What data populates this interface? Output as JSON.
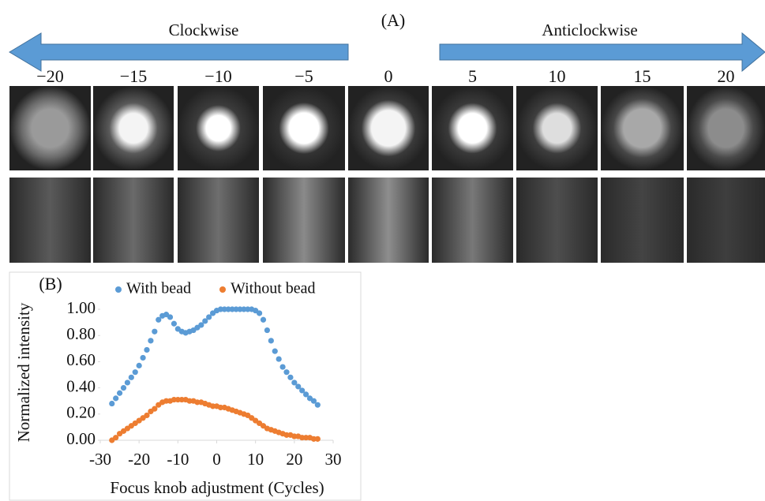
{
  "panel_a": {
    "label": "(A)",
    "left_arrow": "Clockwise",
    "right_arrow": "Anticlockwise",
    "positions": [
      "−20",
      "−15",
      "−10",
      "−5",
      "0",
      "5",
      "10",
      "15",
      "20"
    ]
  },
  "chart_data": {
    "type": "scatter",
    "title": "(B)",
    "x_label": "Focus knob adjustment (Cycles)",
    "y_label": "Normalized intensity",
    "x": [
      -27,
      -26,
      -25,
      -24,
      -23,
      -22,
      -21,
      -20,
      -19,
      -18,
      -17,
      -16,
      -15,
      -14,
      -13,
      -12,
      -11,
      -10,
      -9,
      -8,
      -7,
      -6,
      -5,
      -4,
      -3,
      -2,
      -1,
      0,
      1,
      2,
      3,
      4,
      5,
      6,
      7,
      8,
      9,
      10,
      11,
      12,
      13,
      14,
      15,
      16,
      17,
      18,
      19,
      20,
      21,
      22,
      23,
      24,
      25,
      26
    ],
    "series": [
      {
        "name": "With bead",
        "color": "#5b9bd5",
        "values": [
          0.28,
          0.32,
          0.36,
          0.4,
          0.44,
          0.48,
          0.52,
          0.57,
          0.63,
          0.69,
          0.76,
          0.83,
          0.92,
          0.95,
          0.96,
          0.94,
          0.89,
          0.85,
          0.83,
          0.82,
          0.83,
          0.84,
          0.86,
          0.88,
          0.91,
          0.94,
          0.97,
          0.99,
          1.0,
          1.0,
          1.0,
          1.0,
          1.0,
          1.0,
          1.0,
          1.0,
          1.0,
          0.99,
          0.97,
          0.92,
          0.84,
          0.76,
          0.68,
          0.62,
          0.56,
          0.52,
          0.48,
          0.44,
          0.41,
          0.38,
          0.35,
          0.32,
          0.3,
          0.27
        ]
      },
      {
        "name": "Without bead",
        "color": "#ed7d31",
        "values": [
          0.0,
          0.02,
          0.05,
          0.07,
          0.09,
          0.11,
          0.13,
          0.15,
          0.17,
          0.19,
          0.22,
          0.24,
          0.27,
          0.29,
          0.3,
          0.3,
          0.31,
          0.31,
          0.31,
          0.31,
          0.3,
          0.3,
          0.29,
          0.29,
          0.28,
          0.27,
          0.26,
          0.26,
          0.25,
          0.25,
          0.24,
          0.23,
          0.22,
          0.21,
          0.2,
          0.19,
          0.17,
          0.15,
          0.13,
          0.11,
          0.09,
          0.08,
          0.07,
          0.06,
          0.05,
          0.04,
          0.04,
          0.03,
          0.03,
          0.02,
          0.02,
          0.02,
          0.01,
          0.01
        ]
      }
    ],
    "xlim": [
      -30,
      30
    ],
    "xticks": [
      -30,
      -20,
      -10,
      0,
      10,
      20,
      30
    ],
    "ylim": [
      0,
      1
    ],
    "yticks": [
      {
        "value": 0,
        "label": "0.00"
      },
      {
        "value": 0.2,
        "label": "0.20"
      },
      {
        "value": 0.4,
        "label": "0.40"
      },
      {
        "value": 0.6,
        "label": "0.60"
      },
      {
        "value": 0.8,
        "label": "0.80"
      },
      {
        "value": 1,
        "label": "1.00"
      }
    ],
    "legend": "top"
  }
}
